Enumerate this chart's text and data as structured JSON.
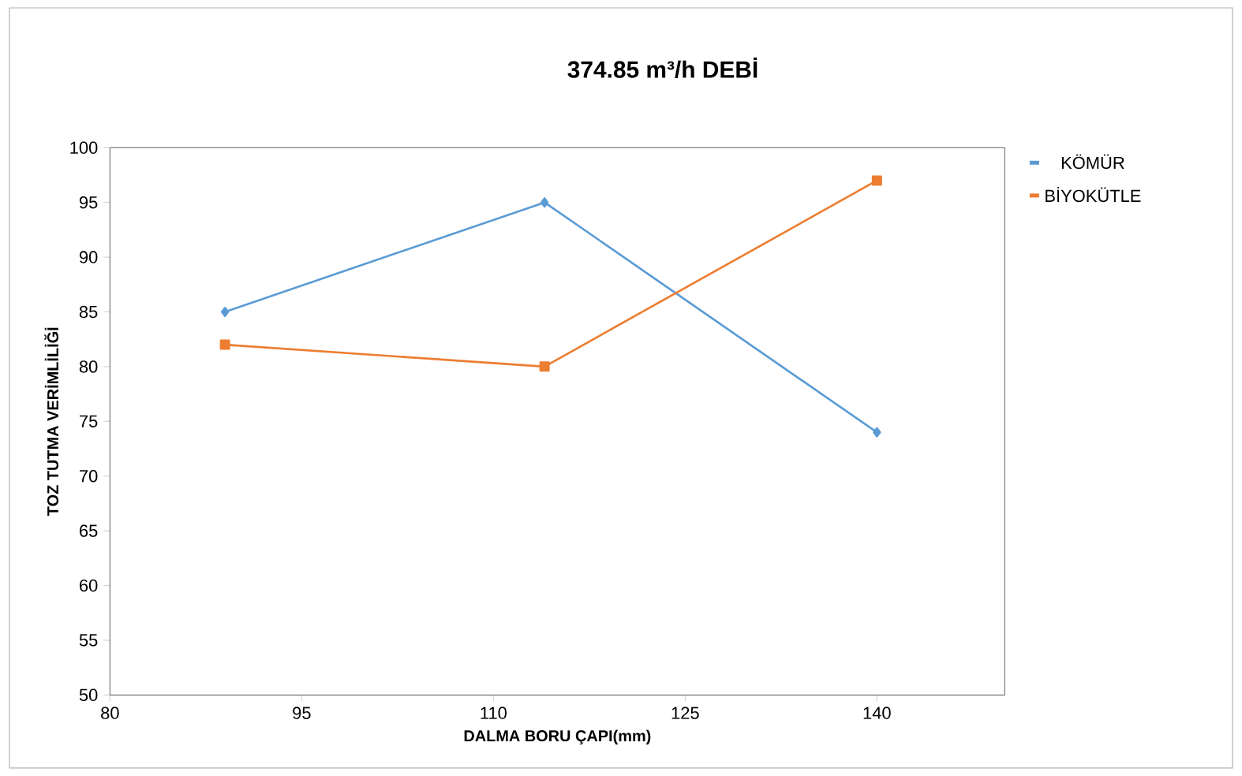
{
  "chart_data": {
    "type": "line",
    "title": "374.85 m³/h DEBİ",
    "xlabel": "DALMA BORU ÇAPI(mm)",
    "ylabel": "TOZ TUTMA VERİMLİLİĞİ",
    "x": [
      89,
      114,
      140
    ],
    "series": [
      {
        "name": "KÖMÜR",
        "color": "#5b9bd5",
        "values": [
          85,
          95,
          74
        ],
        "marker": "diamond"
      },
      {
        "name": "BİYOKÜTLE",
        "color": "#ed7d31",
        "values": [
          82,
          80,
          97
        ],
        "marker": "square"
      }
    ],
    "xlim": [
      80,
      150
    ],
    "xticks": [
      80,
      95,
      110,
      125,
      140
    ],
    "ylim": [
      50,
      100
    ],
    "yticks": [
      50,
      55,
      60,
      65,
      70,
      75,
      80,
      85,
      90,
      95,
      100
    ],
    "grid": false,
    "legend": "right",
    "line_style": "solid"
  }
}
